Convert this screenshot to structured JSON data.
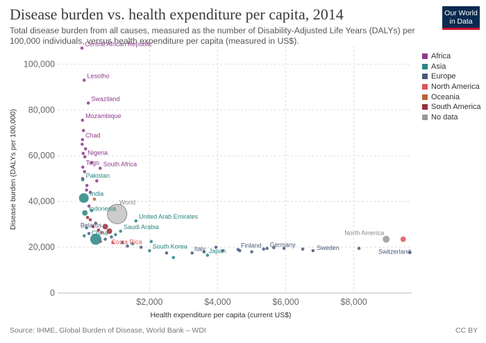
{
  "header": {
    "title": "Disease burden vs. health expenditure per capita, 2014",
    "subtitle": "Total disease burden from all causes, measured as the number of Disability-Adjusted Life Years (DALYs) per 100,000 individuals, versus health expenditure per capita (measured in US$).",
    "logo_line1": "Our World",
    "logo_line2": "in Data"
  },
  "footer": {
    "source": "Source: IHME, Global Burden of Disease, World Bank – WDI",
    "license": "CC BY"
  },
  "colors": {
    "Africa": "#8e3a8c",
    "Asia": "#2a8583",
    "Europe": "#4a5a7a",
    "North America": "#e0545a",
    "Oceania": "#b5643a",
    "South America": "#962e3a",
    "No data": "#999999"
  },
  "chart_data": {
    "type": "scatter",
    "title": "Disease burden vs. health expenditure per capita, 2014",
    "xlabel": "Health expenditure per capita (current US$)",
    "ylabel": "Disease burden (DALYs per 100,000)",
    "xlim": [
      -700,
      9700
    ],
    "ylim": [
      0,
      108000
    ],
    "x_ticks": [
      2000,
      4000,
      6000,
      8000
    ],
    "x_tick_labels": [
      "$2,000",
      "$4,000",
      "$6,000",
      "$8,000"
    ],
    "y_ticks": [
      0,
      20000,
      40000,
      60000,
      80000,
      100000
    ],
    "y_tick_labels": [
      "0",
      "20,000",
      "40,000",
      "60,000",
      "80,000",
      "100,000"
    ],
    "grid": true,
    "legend": [
      "Africa",
      "Asia",
      "Europe",
      "North America",
      "Oceania",
      "South America",
      "No data"
    ],
    "legend_position": "right",
    "labeled_points": [
      {
        "name": "Central African Republic",
        "x": 15,
        "y": 107000,
        "region": "Africa"
      },
      {
        "name": "Lesotho",
        "x": 80,
        "y": 93000,
        "region": "Africa"
      },
      {
        "name": "Swaziland",
        "x": 200,
        "y": 83000,
        "region": "Africa"
      },
      {
        "name": "Mozambique",
        "x": 30,
        "y": 75500,
        "region": "Africa"
      },
      {
        "name": "Chad",
        "x": 30,
        "y": 67000,
        "region": "Africa"
      },
      {
        "name": "Nigeria",
        "x": 100,
        "y": 59500,
        "region": "Africa"
      },
      {
        "name": "Togo",
        "x": 40,
        "y": 55000,
        "region": "Africa"
      },
      {
        "name": "South Africa",
        "x": 550,
        "y": 54500,
        "region": "Africa"
      },
      {
        "name": "Pakistan",
        "x": 40,
        "y": 49500,
        "region": "Asia"
      },
      {
        "name": "India",
        "x": 70,
        "y": 41500,
        "region": "Asia",
        "r": 7
      },
      {
        "name": "Indonesia",
        "x": 100,
        "y": 35000,
        "region": "Asia",
        "r": 4
      },
      {
        "name": "Belarus",
        "x": 420,
        "y": 30500,
        "region": "Europe"
      },
      {
        "name": "China",
        "x": 420,
        "y": 23500,
        "region": "Asia",
        "r": 8
      },
      {
        "name": "Saudi Arabia",
        "x": 1150,
        "y": 27000,
        "region": "Asia"
      },
      {
        "name": "Costa Rica",
        "x": 920,
        "y": 22000,
        "region": "North America"
      },
      {
        "name": "United Arab Emirates",
        "x": 1600,
        "y": 31500,
        "region": "Asia"
      },
      {
        "name": "World",
        "x": 1050,
        "y": 34500,
        "region": "No data",
        "r": 14
      },
      {
        "name": "South Korea",
        "x": 2000,
        "y": 18500,
        "region": "Asia"
      },
      {
        "name": "Italy",
        "x": 3250,
        "y": 17500,
        "region": "Europe"
      },
      {
        "name": "Japan",
        "x": 3700,
        "y": 16500,
        "region": "Asia"
      },
      {
        "name": "Finland",
        "x": 4600,
        "y": 19000,
        "region": "Europe"
      },
      {
        "name": "Germany",
        "x": 5450,
        "y": 19500,
        "region": "Europe"
      },
      {
        "name": "Sweden",
        "x": 6800,
        "y": 18500,
        "region": "Europe"
      },
      {
        "name": "North America",
        "x": 8950,
        "y": 23500,
        "region": "No data",
        "r": 5
      },
      {
        "name": "Switzerland",
        "x": 9650,
        "y": 17700,
        "region": "Europe"
      }
    ],
    "unlabeled_points": [
      {
        "x": 160,
        "y": 47000,
        "region": "Africa"
      },
      {
        "x": 260,
        "y": 44000,
        "region": "Africa"
      },
      {
        "x": 120,
        "y": 63000,
        "region": "Africa"
      },
      {
        "x": 50,
        "y": 61000,
        "region": "Africa"
      },
      {
        "x": 20,
        "y": 65000,
        "region": "Africa"
      },
      {
        "x": 60,
        "y": 71000,
        "region": "Africa"
      },
      {
        "x": 90,
        "y": 53000,
        "region": "Africa"
      },
      {
        "x": 450,
        "y": 49000,
        "region": "Africa"
      },
      {
        "x": 300,
        "y": 57000,
        "region": "Africa"
      },
      {
        "x": 150,
        "y": 45000,
        "region": "Africa"
      },
      {
        "x": 35,
        "y": 50000,
        "region": "Africa"
      },
      {
        "x": 380,
        "y": 41000,
        "region": "Oceania"
      },
      {
        "x": 220,
        "y": 38000,
        "region": "Africa"
      },
      {
        "x": 300,
        "y": 36000,
        "region": "Asia"
      },
      {
        "x": 180,
        "y": 33000,
        "region": "South America"
      },
      {
        "x": 260,
        "y": 32000,
        "region": "South America"
      },
      {
        "x": 340,
        "y": 29000,
        "region": "South America"
      },
      {
        "x": 500,
        "y": 27500,
        "region": "South America"
      },
      {
        "x": 600,
        "y": 26500,
        "region": "North America"
      },
      {
        "x": 700,
        "y": 29000,
        "region": "South America",
        "r": 4
      },
      {
        "x": 820,
        "y": 27000,
        "region": "South America",
        "r": 4
      },
      {
        "x": 150,
        "y": 28500,
        "region": "Asia"
      },
      {
        "x": 220,
        "y": 26000,
        "region": "Europe"
      },
      {
        "x": 80,
        "y": 25000,
        "region": "Asia"
      },
      {
        "x": 560,
        "y": 22500,
        "region": "North America"
      },
      {
        "x": 700,
        "y": 23500,
        "region": "Europe"
      },
      {
        "x": 880,
        "y": 24500,
        "region": "Europe"
      },
      {
        "x": 1000,
        "y": 25500,
        "region": "Asia"
      },
      {
        "x": 1200,
        "y": 22000,
        "region": "Europe"
      },
      {
        "x": 1350,
        "y": 20500,
        "region": "Europe"
      },
      {
        "x": 1500,
        "y": 21500,
        "region": "Asia"
      },
      {
        "x": 1750,
        "y": 20000,
        "region": "Europe"
      },
      {
        "x": 2050,
        "y": 22500,
        "region": "Asia"
      },
      {
        "x": 2500,
        "y": 17500,
        "region": "Europe"
      },
      {
        "x": 2700,
        "y": 15500,
        "region": "Asia"
      },
      {
        "x": 3600,
        "y": 18000,
        "region": "Europe"
      },
      {
        "x": 3950,
        "y": 20000,
        "region": "Europe"
      },
      {
        "x": 4150,
        "y": 18500,
        "region": "Europe"
      },
      {
        "x": 4650,
        "y": 18500,
        "region": "Europe"
      },
      {
        "x": 5000,
        "y": 18000,
        "region": "Europe"
      },
      {
        "x": 5350,
        "y": 19200,
        "region": "Europe"
      },
      {
        "x": 5650,
        "y": 19800,
        "region": "Europe"
      },
      {
        "x": 5950,
        "y": 19500,
        "region": "Europe"
      },
      {
        "x": 6500,
        "y": 19200,
        "region": "Europe"
      },
      {
        "x": 8150,
        "y": 19500,
        "region": "Europe"
      },
      {
        "x": 9450,
        "y": 23500,
        "region": "North America",
        "r": 4
      }
    ]
  }
}
